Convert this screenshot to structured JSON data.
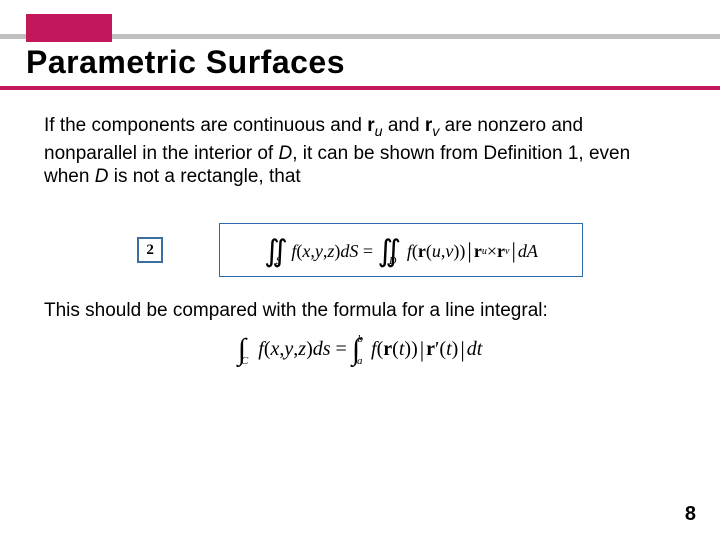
{
  "accent_color": "#c2185b",
  "header": {
    "title": "Parametric Surfaces"
  },
  "para1_html": "If the components are continuous and <span class=\"r\">r</span><sub>u</sub> and <span class=\"r\">r</span><sub>v</sub> are nonzero and nonparallel in the interior of <em>D</em>, it can be shown from Definition 1, even when <em>D</em> is not a rectangle, that",
  "eq_label": "2",
  "boxed_formula_html": "<span class=\"int dblint\">&#8748;</span><span class=\"region\">S</span>&nbsp; <span style=\"font-style:italic\">f</span>(<span style=\"font-style:italic\">x</span>, <span style=\"font-style:italic\">y</span>, <span style=\"font-style:italic\">z</span>) <span style=\"font-style:italic\">dS</span> &nbsp;=&nbsp; <span class=\"int dblint\">&#8748;</span><span class=\"region\">D</span>&nbsp; <span style=\"font-style:italic\">f</span>(<span class=\"b\">r</span>(<span style=\"font-style:italic\">u</span>, <span style=\"font-style:italic\">v</span>)) <span class=\"bigbar\">|</span><span class=\"b\">r</span><span class=\"subsc\">u</span> &times; <span class=\"b\">r</span><span class=\"subsc\">v</span><span class=\"bigbar\">|</span> <span style=\"font-style:italic\">dA</span>",
  "para2": "This should be compared with the formula for a line integral:",
  "line_formula_html": "<span class=\"int\">&#8747;</span><span class=\"limc\">C</span>&nbsp;<span style=\"font-style:italic\">f</span>(<span style=\"font-style:italic\">x</span>, <span style=\"font-style:italic\">y</span>, <span style=\"font-style:italic\">z</span>) <span style=\"font-style:italic\">ds</span> &nbsp;=&nbsp; <span class=\"int\">&#8747;</span><span class=\"lima\">a</span><span class=\"limb\">b</span><span style=\"font-style:italic\">f</span>(<span class=\"b\">r</span>(<span style=\"font-style:italic\">t</span>)) <span class=\"bigbar\">|</span><span class=\"b\">r</span>&#8242;(<span style=\"font-style:italic\">t</span>)<span class=\"bigbar\">|</span> <span style=\"font-style:italic\">dt</span>",
  "page_number": "8"
}
